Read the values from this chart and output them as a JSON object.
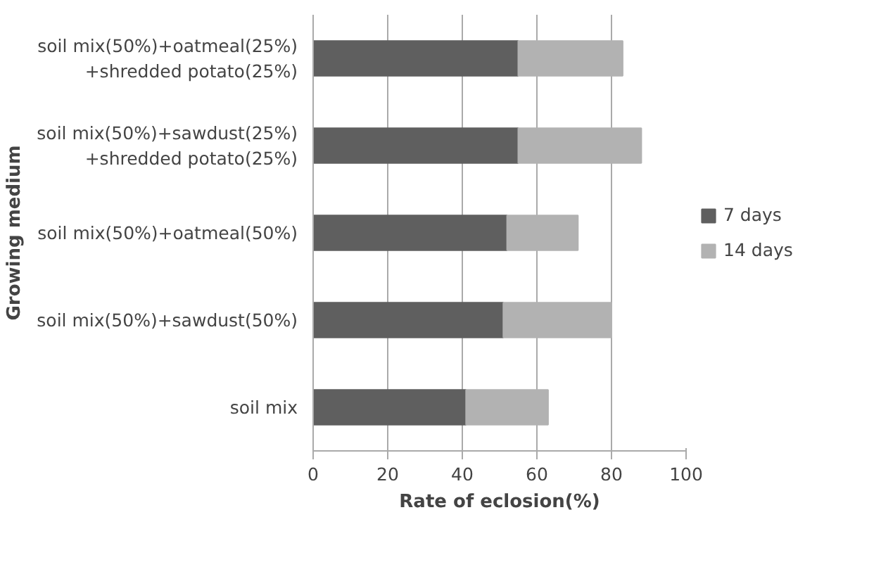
{
  "chart_data": {
    "type": "bar",
    "orientation": "horizontal",
    "stacked": true,
    "xlabel": "Rate of eclosion(%)",
    "ylabel": "Growing medium",
    "categories": [
      "soil mix(50%)+oatmeal(25%)\n+shredded potato(25%)",
      "soil mix(50%)+sawdust(25%)\n+shredded potato(25%)",
      "soil mix(50%)+oatmeal(50%)",
      "soil mix(50%)+sawdust(50%)",
      "soil mix"
    ],
    "series": [
      {
        "name": "7 days",
        "color": "#5f5f5f",
        "values": [
          55,
          55,
          52,
          51,
          41
        ]
      },
      {
        "name": "14 days",
        "color": "#b2b2b2",
        "values": [
          28,
          33,
          19,
          29,
          22
        ]
      }
    ],
    "xlim": [
      0,
      100
    ],
    "xticks": [
      0,
      20,
      40,
      60,
      80,
      100
    ],
    "grid": "x",
    "legend": "right"
  }
}
